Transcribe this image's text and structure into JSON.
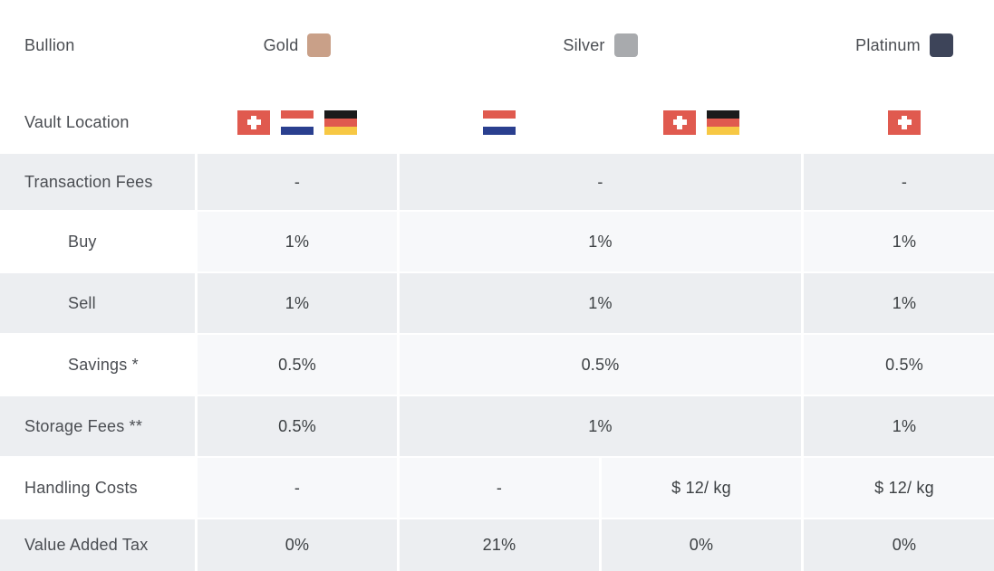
{
  "header": {
    "label": "Bullion",
    "metals": [
      {
        "name": "Gold",
        "color": "#c9a088"
      },
      {
        "name": "Silver",
        "color": "#a8aaad"
      },
      {
        "name": "Platinum",
        "color": "#3d4459"
      }
    ]
  },
  "vault": {
    "label": "Vault Location",
    "gold_flags": [
      "flag-ch-icon",
      "flag-nl-icon",
      "flag-de-icon"
    ],
    "silver_a_flags": [
      "flag-nl-icon"
    ],
    "silver_b_flags": [
      "flag-ch-icon",
      "flag-de-icon"
    ],
    "platinum_flags": [
      "flag-ch-icon"
    ]
  },
  "rows": {
    "transaction": {
      "label": "Transaction Fees",
      "gold": "-",
      "silver": "-",
      "platinum": "-"
    },
    "buy": {
      "label": "Buy",
      "gold": "1%",
      "silver": "1%",
      "platinum": "1%"
    },
    "sell": {
      "label": "Sell",
      "gold": "1%",
      "silver": "1%",
      "platinum": "1%"
    },
    "savings": {
      "label": "Savings *",
      "gold": "0.5%",
      "silver": "0.5%",
      "platinum": "0.5%"
    },
    "storage": {
      "label": "Storage Fees **",
      "gold": "0.5%",
      "silver": "1%",
      "platinum": "1%"
    },
    "handling": {
      "label": "Handling Costs",
      "gold": "-",
      "silver_a": "-",
      "silver_b": "$ 12/ kg",
      "platinum": "$ 12/ kg"
    },
    "vat": {
      "label": "Value Added Tax",
      "gold": "0%",
      "silver_a": "21%",
      "silver_b": "0%",
      "platinum": "0%"
    }
  }
}
